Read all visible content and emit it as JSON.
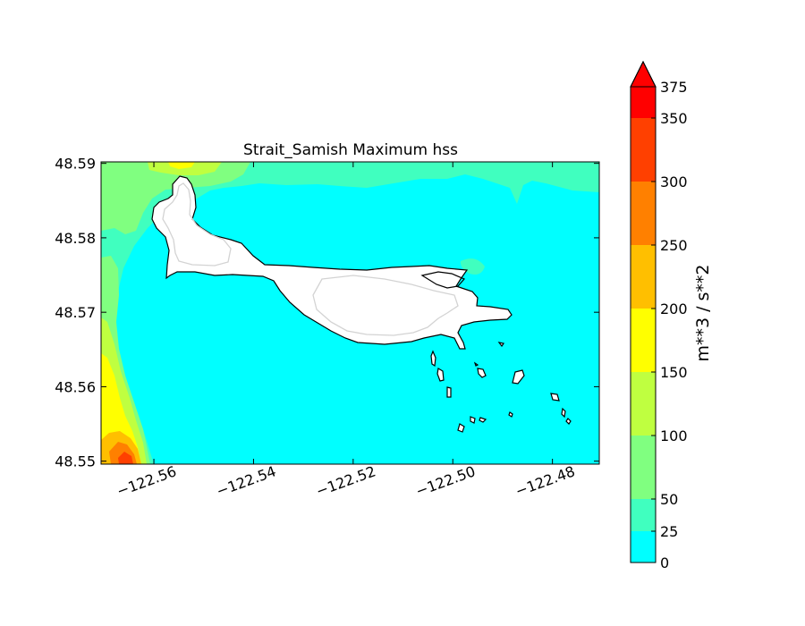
{
  "chart_data": {
    "type": "heatmap",
    "title": "Strait_Samish Maximum hss",
    "xlabel": "",
    "ylabel": "",
    "x_ticks": [
      "−122.56",
      "−122.54",
      "−122.52",
      "−122.50",
      "−122.48"
    ],
    "y_ticks": [
      "48.59",
      "48.58",
      "48.57",
      "48.56",
      "48.55"
    ],
    "xlim": [
      -122.5706,
      -122.4706
    ],
    "ylim": [
      48.5496,
      48.5902
    ],
    "colorbar": {
      "label": "m**3 / s**2",
      "levels": [
        0,
        25,
        50,
        100,
        150,
        200,
        250,
        300,
        350,
        375
      ],
      "tick_labels": [
        "0",
        "25",
        "50",
        "100",
        "150",
        "200",
        "250",
        "300",
        "350",
        "375"
      ],
      "colors": [
        "#00ffff",
        "#40ffbf",
        "#80ff80",
        "#bfff40",
        "#ffff00",
        "#ffbf00",
        "#ff8000",
        "#ff4000",
        "#ff0000"
      ],
      "extend": "max",
      "extend_color": "#ff0000"
    },
    "land_color": "#ffffff",
    "coastline_color": "#000000",
    "contour_color": "#d3d3d3",
    "grid": false,
    "legend": "none"
  }
}
